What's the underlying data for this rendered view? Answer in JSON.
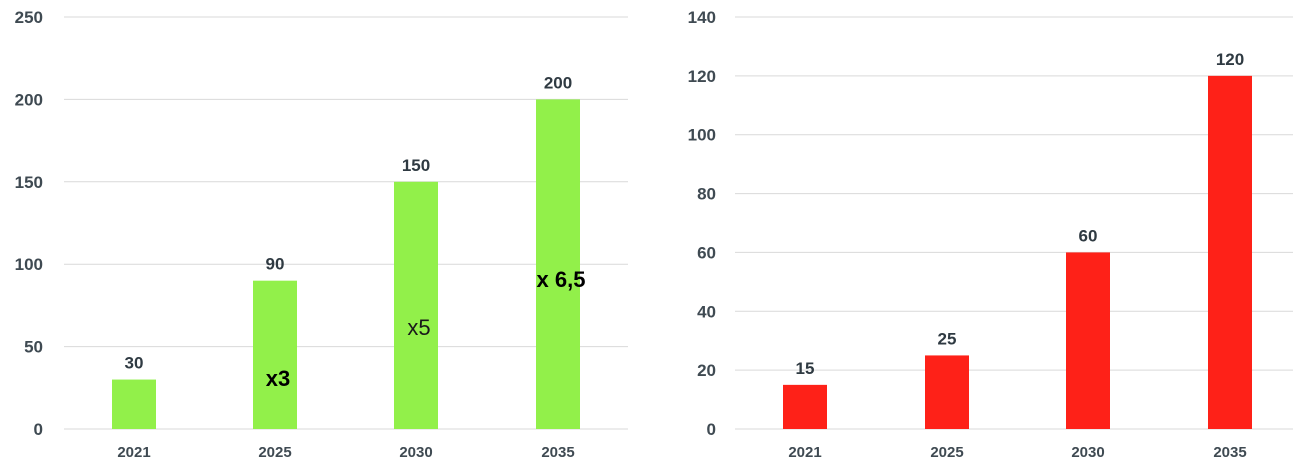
{
  "chart_data": [
    {
      "type": "bar",
      "categories": [
        "2021",
        "2025",
        "2030",
        "2035"
      ],
      "values": [
        30,
        90,
        150,
        200
      ],
      "ylim": [
        0,
        250
      ],
      "yticks": [
        0,
        50,
        100,
        150,
        200,
        250
      ],
      "grid": true,
      "bar_color": "#92f04a",
      "data_labels": [
        "30",
        "90",
        "150",
        "200"
      ],
      "annotations": [
        {
          "category": "2025",
          "text": "x3",
          "bold": true,
          "at_value": 31
        },
        {
          "category": "2030",
          "text": "x5",
          "bold": false,
          "at_value": 62
        },
        {
          "category": "2035",
          "text": "x 6,5",
          "bold": true,
          "at_value": 91
        }
      ]
    },
    {
      "type": "bar",
      "categories": [
        "2021",
        "2025",
        "2030",
        "2035"
      ],
      "values": [
        15,
        25,
        60,
        120
      ],
      "ylim": [
        0,
        140
      ],
      "yticks": [
        0,
        20,
        40,
        60,
        80,
        100,
        120,
        140
      ],
      "grid": true,
      "bar_color": "#fe2118",
      "data_labels": [
        "15",
        "25",
        "60",
        "120"
      ],
      "annotations": []
    }
  ]
}
